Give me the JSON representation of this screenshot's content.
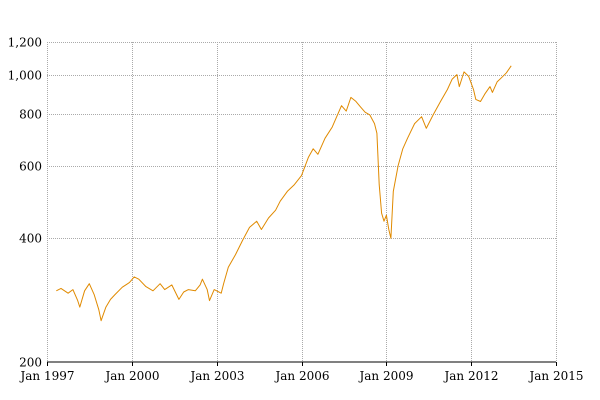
{
  "chart_data": {
    "type": "line",
    "title": "",
    "xlabel": "",
    "ylabel": "",
    "y_scale": "log",
    "grid": true,
    "legend": "none",
    "xlim": [
      "1997-01-01",
      "2015-01-01"
    ],
    "ylim": [
      200,
      1200
    ],
    "x_ticks": [
      {
        "date": "1997-01-01",
        "label": "Jan 1997"
      },
      {
        "date": "2000-01-01",
        "label": "Jan 2000"
      },
      {
        "date": "2003-01-01",
        "label": "Jan 2003"
      },
      {
        "date": "2006-01-01",
        "label": "Jan 2006"
      },
      {
        "date": "2009-01-01",
        "label": "Jan 2009"
      },
      {
        "date": "2012-01-01",
        "label": "Jan 2012"
      },
      {
        "date": "2015-01-01",
        "label": "Jan 2015"
      }
    ],
    "y_ticks": [
      {
        "value": 200,
        "label": "200"
      },
      {
        "value": 400,
        "label": "400"
      },
      {
        "value": 600,
        "label": "600"
      },
      {
        "value": 800,
        "label": "800"
      },
      {
        "value": 1000,
        "label": "1,000"
      },
      {
        "value": 1200,
        "label": "1,200"
      }
    ],
    "series": [
      {
        "color": "#e08a00",
        "points": [
          [
            "1997-05-01",
            298
          ],
          [
            "1997-07-01",
            302
          ],
          [
            "1997-10-01",
            294
          ],
          [
            "1997-12-01",
            300
          ],
          [
            "1998-02-01",
            282
          ],
          [
            "1998-03-01",
            272
          ],
          [
            "1998-05-01",
            298
          ],
          [
            "1998-07-01",
            310
          ],
          [
            "1998-09-01",
            292
          ],
          [
            "1998-11-01",
            268
          ],
          [
            "1998-12-01",
            252
          ],
          [
            "1999-02-01",
            272
          ],
          [
            "1999-04-01",
            284
          ],
          [
            "1999-06-01",
            292
          ],
          [
            "1999-09-01",
            304
          ],
          [
            "1999-12-01",
            312
          ],
          [
            "2000-02-01",
            322
          ],
          [
            "2000-04-01",
            318
          ],
          [
            "2000-07-01",
            305
          ],
          [
            "2000-10-01",
            298
          ],
          [
            "2001-01-01",
            310
          ],
          [
            "2001-03-01",
            300
          ],
          [
            "2001-06-01",
            308
          ],
          [
            "2001-09-01",
            284
          ],
          [
            "2001-11-01",
            296
          ],
          [
            "2002-01-01",
            300
          ],
          [
            "2002-04-01",
            298
          ],
          [
            "2002-06-01",
            308
          ],
          [
            "2002-07-01",
            318
          ],
          [
            "2002-09-01",
            300
          ],
          [
            "2002-10-01",
            282
          ],
          [
            "2002-12-01",
            300
          ],
          [
            "2003-03-01",
            294
          ],
          [
            "2003-04-01",
            310
          ],
          [
            "2003-06-01",
            340
          ],
          [
            "2003-09-01",
            365
          ],
          [
            "2003-12-01",
            395
          ],
          [
            "2004-03-01",
            425
          ],
          [
            "2004-06-01",
            440
          ],
          [
            "2004-08-01",
            420
          ],
          [
            "2004-11-01",
            448
          ],
          [
            "2005-02-01",
            468
          ],
          [
            "2005-04-01",
            492
          ],
          [
            "2005-07-01",
            520
          ],
          [
            "2005-10-01",
            540
          ],
          [
            "2006-01-01",
            568
          ],
          [
            "2006-04-01",
            630
          ],
          [
            "2006-06-01",
            660
          ],
          [
            "2006-08-01",
            640
          ],
          [
            "2006-11-01",
            700
          ],
          [
            "2007-02-01",
            745
          ],
          [
            "2007-04-01",
            790
          ],
          [
            "2007-06-01",
            840
          ],
          [
            "2007-08-01",
            815
          ],
          [
            "2007-10-01",
            880
          ],
          [
            "2007-12-01",
            862
          ],
          [
            "2008-02-01",
            835
          ],
          [
            "2008-04-01",
            810
          ],
          [
            "2008-06-01",
            798
          ],
          [
            "2008-08-01",
            760
          ],
          [
            "2008-09-01",
            720
          ],
          [
            "2008-10-01",
            540
          ],
          [
            "2008-11-01",
            460
          ],
          [
            "2008-12-01",
            440
          ],
          [
            "2009-01-01",
            455
          ],
          [
            "2009-02-01",
            420
          ],
          [
            "2009-03-01",
            400
          ],
          [
            "2009-04-01",
            520
          ],
          [
            "2009-06-01",
            600
          ],
          [
            "2009-08-01",
            660
          ],
          [
            "2009-10-01",
            700
          ],
          [
            "2010-01-01",
            760
          ],
          [
            "2010-04-01",
            790
          ],
          [
            "2010-06-01",
            740
          ],
          [
            "2010-09-01",
            800
          ],
          [
            "2010-12-01",
            860
          ],
          [
            "2011-03-01",
            920
          ],
          [
            "2011-05-01",
            975
          ],
          [
            "2011-07-01",
            1000
          ],
          [
            "2011-08-01",
            935
          ],
          [
            "2011-10-01",
            1015
          ],
          [
            "2011-12-01",
            990
          ],
          [
            "2012-02-01",
            920
          ],
          [
            "2012-03-01",
            870
          ],
          [
            "2012-05-01",
            860
          ],
          [
            "2012-07-01",
            900
          ],
          [
            "2012-09-01",
            935
          ],
          [
            "2012-10-01",
            905
          ],
          [
            "2012-12-01",
            960
          ],
          [
            "2013-02-01",
            985
          ],
          [
            "2013-04-01",
            1010
          ],
          [
            "2013-06-01",
            1050
          ]
        ]
      }
    ]
  }
}
